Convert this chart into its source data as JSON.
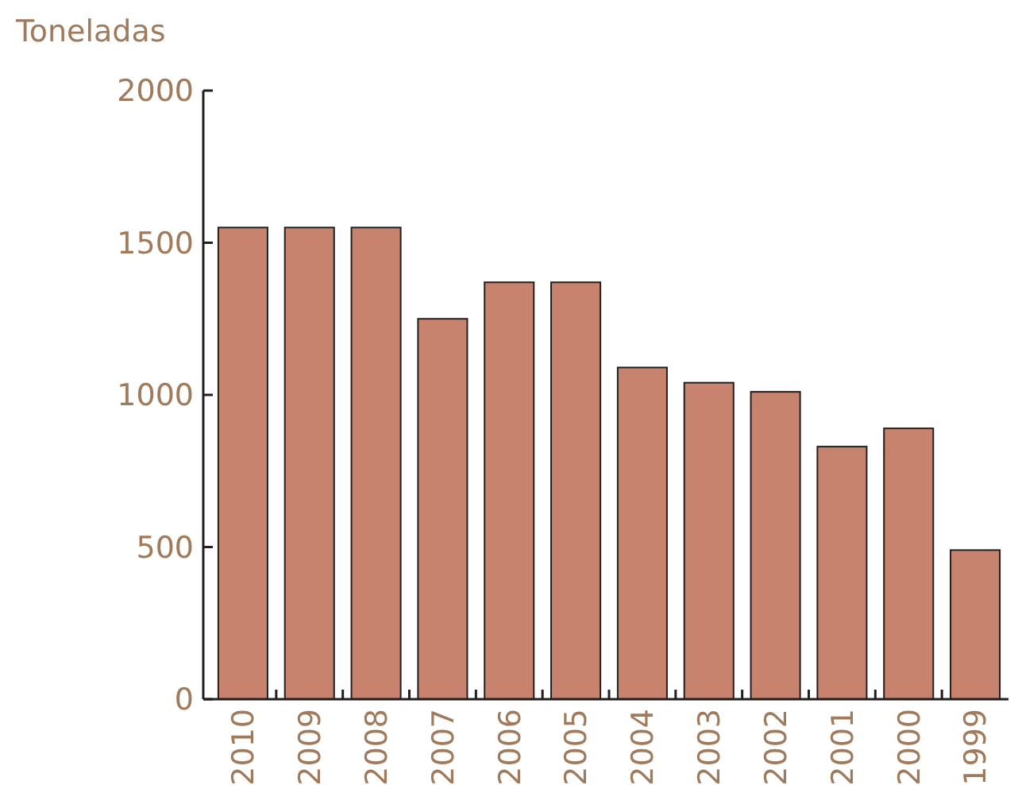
{
  "chart_data": {
    "type": "bar",
    "ylabel": "Toneladas",
    "categories": [
      "2010",
      "2009",
      "2008",
      "2007",
      "2006",
      "2005",
      "2004",
      "2003",
      "2002",
      "2001",
      "2000",
      "1999"
    ],
    "values": [
      1550,
      1550,
      1550,
      1250,
      1370,
      1370,
      1090,
      1040,
      1010,
      830,
      890,
      490
    ],
    "color": "#c8836f",
    "ylim": [
      0,
      2000
    ],
    "yticks": [
      0,
      500,
      1000,
      1500,
      2000
    ],
    "grid": false
  }
}
